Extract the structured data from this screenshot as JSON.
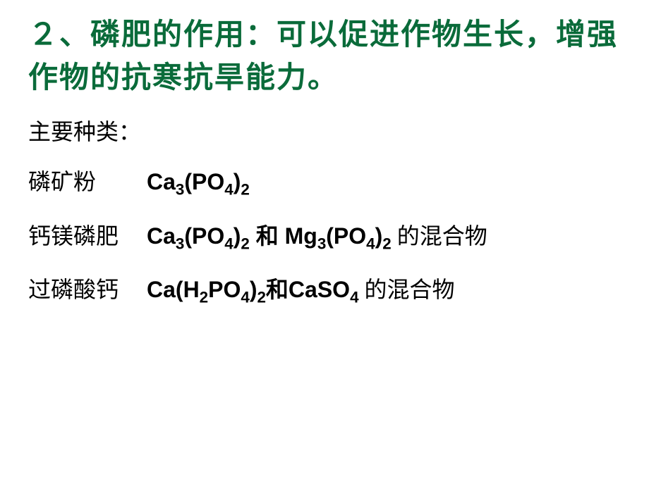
{
  "title": {
    "text": "２、磷肥的作用：可以促进作物生长，增强作物的抗寒抗旱能力。",
    "color": "#0a6b3a",
    "fontsize": 42
  },
  "subtitle": {
    "text": "主要种类：",
    "color": "#000000",
    "fontsize": 32
  },
  "body_fontsize": 32,
  "body_color": "#000000",
  "rows": [
    {
      "label": "磷矿粉",
      "formula_html": "Ca<sub>3</sub>(PO<sub>4</sub>)<sub>2</sub>",
      "suffix": ""
    },
    {
      "label": "钙镁磷肥",
      "formula_html": "Ca<sub>3</sub>(PO<sub>4</sub>)<sub>2</sub> 和 Mg<sub>3</sub>(PO<sub>4</sub>)<sub>2</sub>",
      "suffix": "的混合物"
    },
    {
      "label": "过磷酸钙",
      "formula_html": "Ca(H<sub>2</sub>PO<sub>4</sub>)<sub>2</sub>和CaSO<sub>4</sub>",
      "suffix": "的混合物"
    }
  ],
  "background_color": "#ffffff"
}
